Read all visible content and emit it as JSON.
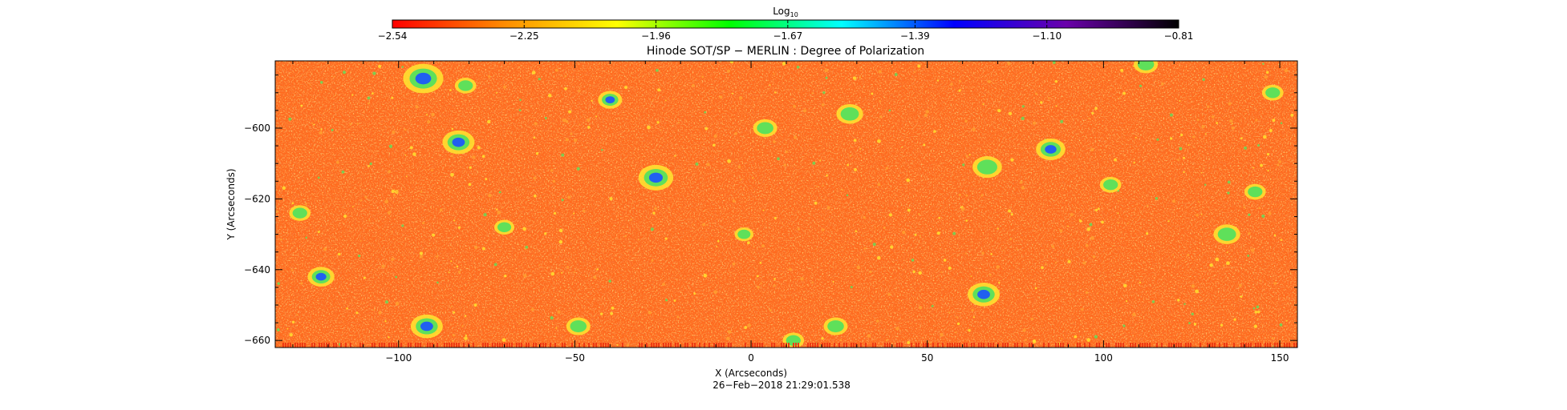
{
  "chart_data": {
    "type": "heatmap",
    "title": "Hinode SOT/SP − MERLIN : Degree of Polarization",
    "xlabel": "X (Arcseconds)",
    "ylabel": "Y (Arcseconds)",
    "xlim": [
      -135,
      155
    ],
    "ylim": [
      -662,
      -581
    ],
    "x_ticks": [
      -100,
      -50,
      0,
      50,
      100,
      150
    ],
    "x_tick_labels": [
      "−100",
      "−50",
      "0",
      "50",
      "100",
      "150"
    ],
    "y_ticks": [
      -600,
      -620,
      -640,
      -660
    ],
    "y_tick_labels": [
      "−600",
      "−620",
      "−640",
      "−660"
    ],
    "colorbar": {
      "label_base": "Log",
      "label_sub": "10",
      "range": [
        -2.54,
        -0.81
      ],
      "ticks": [
        -2.54,
        -2.25,
        -1.96,
        -1.67,
        -1.39,
        -1.1,
        -0.81
      ],
      "tick_labels": [
        "−2.54",
        "−2.25",
        "−1.96",
        "−1.67",
        "−1.39",
        "−1.10",
        "−0.81"
      ],
      "colors": [
        "#ff0000",
        "#ff8c00",
        "#ffff00",
        "#00ff00",
        "#00ffff",
        "#0000ff",
        "#6a00aa",
        "#000000"
      ]
    },
    "map_colors": {
      "background": "#ff6a1e",
      "dark": "#ee3a14",
      "mid": "#ffa030",
      "bright": "#ffe030",
      "green": "#5fe05a",
      "blue": "#2060f0"
    },
    "features": [
      {
        "x": -93,
        "y": -586,
        "r": 3.0,
        "level": "blue"
      },
      {
        "x": -81,
        "y": -588,
        "r": 1.6,
        "level": "green"
      },
      {
        "x": -40,
        "y": -592,
        "r": 1.8,
        "level": "blue"
      },
      {
        "x": -83,
        "y": -604,
        "r": 2.4,
        "level": "blue"
      },
      {
        "x": -27,
        "y": -614,
        "r": 2.6,
        "level": "blue"
      },
      {
        "x": -122,
        "y": -642,
        "r": 2.0,
        "level": "blue"
      },
      {
        "x": -92,
        "y": -656,
        "r": 2.4,
        "level": "blue"
      },
      {
        "x": -49,
        "y": -656,
        "r": 1.8,
        "level": "green"
      },
      {
        "x": 4,
        "y": -600,
        "r": 1.8,
        "level": "green"
      },
      {
        "x": 28,
        "y": -596,
        "r": 2.0,
        "level": "green"
      },
      {
        "x": 67,
        "y": -611,
        "r": 2.2,
        "level": "green"
      },
      {
        "x": 85,
        "y": -606,
        "r": 2.2,
        "level": "blue"
      },
      {
        "x": 66,
        "y": -647,
        "r": 2.4,
        "level": "blue"
      },
      {
        "x": 112,
        "y": -582,
        "r": 1.8,
        "level": "green"
      },
      {
        "x": 135,
        "y": -630,
        "r": 2.0,
        "level": "green"
      },
      {
        "x": 143,
        "y": -618,
        "r": 1.6,
        "level": "green"
      },
      {
        "x": 12,
        "y": -660,
        "r": 1.6,
        "level": "green"
      },
      {
        "x": 24,
        "y": -656,
        "r": 1.8,
        "level": "green"
      },
      {
        "x": -70,
        "y": -628,
        "r": 1.5,
        "level": "green"
      },
      {
        "x": 102,
        "y": -616,
        "r": 1.6,
        "level": "green"
      },
      {
        "x": 148,
        "y": -590,
        "r": 1.6,
        "level": "green"
      },
      {
        "x": -2,
        "y": -630,
        "r": 1.4,
        "level": "green"
      },
      {
        "x": -128,
        "y": -624,
        "r": 1.6,
        "level": "green"
      }
    ]
  },
  "footer": {
    "timestamp": "26−Feb−2018 21:29:01.538"
  }
}
